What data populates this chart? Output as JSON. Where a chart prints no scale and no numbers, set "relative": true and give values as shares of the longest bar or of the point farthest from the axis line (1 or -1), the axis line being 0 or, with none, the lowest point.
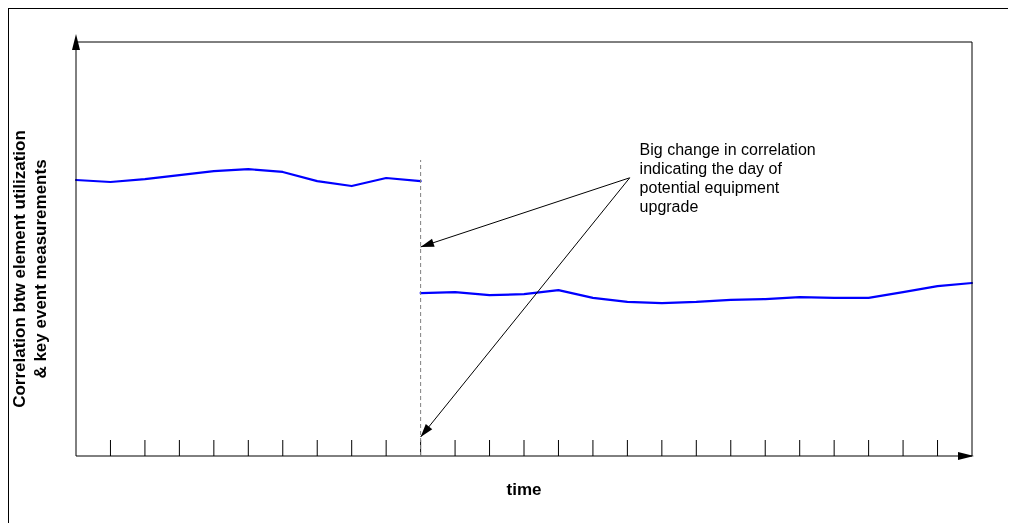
{
  "chart_data": {
    "type": "line",
    "relative": true,
    "xlabel": "time",
    "ylabel": "Correlation btw element utilization\n& key event measurements",
    "categories": [
      null,
      null,
      null,
      null,
      null,
      null,
      null,
      null,
      null,
      null,
      null,
      null,
      null,
      null,
      null,
      null,
      null,
      null,
      null,
      null,
      null,
      null,
      null,
      null,
      null,
      null,
      null
    ],
    "legend": false,
    "marker": "none",
    "line_style": "solid",
    "series": [
      {
        "color": "#0000ff",
        "values": [
          0.962,
          0.955,
          0.965,
          0.979,
          0.993,
          1,
          0.99,
          0.958,
          0.941,
          0.969,
          0.958,
          null,
          null,
          null,
          null,
          null,
          null,
          null,
          null,
          null,
          null,
          null,
          null,
          null,
          null,
          null,
          null
        ]
      },
      {
        "color": "#0000ff",
        "values": [
          null,
          null,
          null,
          null,
          null,
          null,
          null,
          null,
          null,
          null,
          0.568,
          0.571,
          0.561,
          0.564,
          0.578,
          0.551,
          0.537,
          0.533,
          0.537,
          0.544,
          0.547,
          0.554,
          0.551,
          0.551,
          0.571,
          0.592,
          0.603
        ]
      }
    ],
    "annotations": [
      "Big change in correlation\nindicating the day of\npotential equipment\nupgrade"
    ]
  }
}
